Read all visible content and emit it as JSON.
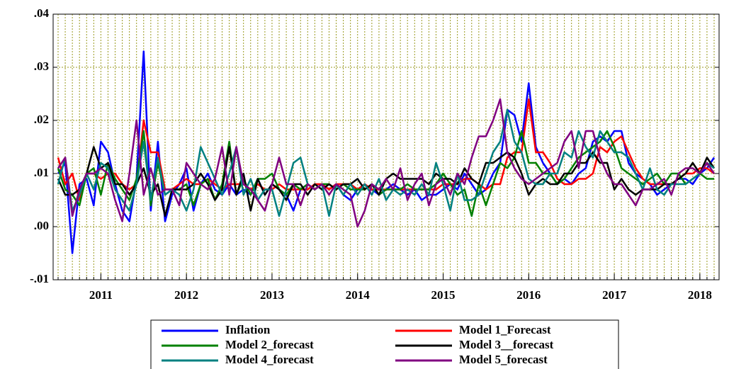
{
  "chart_data": {
    "type": "line",
    "categories": [
      null,
      null,
      null,
      null,
      null,
      null,
      "2011",
      null,
      null,
      null,
      null,
      null,
      null,
      null,
      null,
      null,
      null,
      null,
      "2012",
      null,
      null,
      null,
      null,
      null,
      null,
      null,
      null,
      null,
      null,
      null,
      "2013",
      null,
      null,
      null,
      null,
      null,
      null,
      null,
      null,
      null,
      null,
      null,
      "2014",
      null,
      null,
      null,
      null,
      null,
      null,
      null,
      null,
      null,
      null,
      null,
      "2015",
      null,
      null,
      null,
      null,
      null,
      null,
      null,
      null,
      null,
      null,
      null,
      "2016",
      null,
      null,
      null,
      null,
      null,
      null,
      null,
      null,
      null,
      null,
      null,
      "2017",
      null,
      null,
      null,
      null,
      null,
      null,
      null,
      null,
      null,
      null,
      null,
      "2018",
      null,
      null
    ],
    "ylim": [
      -0.01,
      0.04
    ],
    "yticks": [
      {
        "value": -0.01,
        "label": "-.01"
      },
      {
        "value": 0,
        "label": ".00"
      },
      {
        "value": 0.01,
        "label": ".01"
      },
      {
        "value": 0.02,
        "label": ".02"
      },
      {
        "value": 0.03,
        "label": ".03"
      },
      {
        "value": 0.04,
        "label": ".04"
      }
    ],
    "grid": true,
    "legend": "bottom",
    "series": [
      {
        "name": "Inflation",
        "color": "#0000ff",
        "values": [
          0.01,
          0.012,
          -0.005,
          0.008,
          0.009,
          0.004,
          0.016,
          0.014,
          0.008,
          0.003,
          0.001,
          0.009,
          0.033,
          0.003,
          0.016,
          0.001,
          0.006,
          0.008,
          0.011,
          0.003,
          0.008,
          0.01,
          0.007,
          0.006,
          0.008,
          0.006,
          0.007,
          0.006,
          0.009,
          0.006,
          0.008,
          0.007,
          0.006,
          0.003,
          0.007,
          0.008,
          0.007,
          0.008,
          0.007,
          0.008,
          0.006,
          0.005,
          0.007,
          0.008,
          0.007,
          0.006,
          0.007,
          0.008,
          0.007,
          0.006,
          0.007,
          0.005,
          0.006,
          0.006,
          0.007,
          0.008,
          0.007,
          0.01,
          0.008,
          0.006,
          0.007,
          0.01,
          0.012,
          0.022,
          0.021,
          0.016,
          0.027,
          0.015,
          0.012,
          0.01,
          0.008,
          0.009,
          0.008,
          0.01,
          0.011,
          0.016,
          0.017,
          0.016,
          0.018,
          0.018,
          0.012,
          0.01,
          0.009,
          0.008,
          0.006,
          0.007,
          0.008,
          0.009,
          0.009,
          0.008,
          0.01,
          0.011,
          0.013
        ]
      },
      {
        "name": "Model 1_Forecast",
        "color": "#ff0000",
        "values": [
          0.013,
          0.008,
          0.01,
          0.005,
          0.01,
          0.01,
          0.009,
          0.01,
          0.01,
          0.008,
          0.007,
          0.008,
          0.02,
          0.014,
          0.014,
          0.007,
          0.007,
          0.008,
          0.009,
          0.008,
          0.008,
          0.009,
          0.008,
          0.007,
          0.008,
          0.008,
          0.008,
          0.007,
          0.008,
          0.007,
          0.007,
          0.008,
          0.007,
          0.007,
          0.007,
          0.007,
          0.008,
          0.008,
          0.007,
          0.008,
          0.008,
          0.008,
          0.007,
          0.008,
          0.007,
          0.007,
          0.007,
          0.007,
          0.007,
          0.007,
          0.007,
          0.007,
          0.007,
          0.007,
          0.008,
          0.008,
          0.008,
          0.009,
          0.009,
          0.008,
          0.007,
          0.008,
          0.008,
          0.013,
          0.014,
          0.014,
          0.024,
          0.014,
          0.014,
          0.012,
          0.009,
          0.008,
          0.008,
          0.009,
          0.009,
          0.01,
          0.015,
          0.014,
          0.016,
          0.017,
          0.014,
          0.011,
          0.009,
          0.008,
          0.008,
          0.008,
          0.008,
          0.009,
          0.01,
          0.01,
          0.011,
          0.011,
          0.01
        ]
      },
      {
        "name": "Model 2_forecast",
        "color": "#008000",
        "values": [
          0.011,
          0.007,
          0.006,
          0.004,
          0.01,
          0.011,
          0.006,
          0.012,
          0.009,
          0.007,
          0.005,
          0.009,
          0.018,
          0.004,
          0.012,
          0.006,
          0.007,
          0.007,
          0.008,
          0.004,
          0.008,
          0.009,
          0.005,
          0.008,
          0.016,
          0.006,
          0.009,
          0.006,
          0.009,
          0.009,
          0.01,
          0.007,
          0.006,
          0.008,
          0.007,
          0.008,
          0.007,
          0.008,
          0.008,
          0.007,
          0.008,
          0.007,
          0.007,
          0.007,
          0.008,
          0.006,
          0.007,
          0.007,
          0.007,
          0.008,
          0.007,
          0.007,
          0.007,
          0.008,
          0.01,
          0.008,
          0.006,
          0.007,
          0.002,
          0.008,
          0.004,
          0.008,
          0.012,
          0.011,
          0.013,
          0.018,
          0.012,
          0.012,
          0.01,
          0.01,
          0.008,
          0.009,
          0.011,
          0.013,
          0.014,
          0.015,
          0.016,
          0.018,
          0.015,
          0.011,
          0.01,
          0.009,
          0.008,
          0.009,
          0.01,
          0.008,
          0.01,
          0.01,
          0.008,
          0.009,
          0.01,
          0.009,
          0.009
        ]
      },
      {
        "name": "Model 3__forecast",
        "color": "#000000",
        "values": [
          0.009,
          0.006,
          0.006,
          0.007,
          0.01,
          0.015,
          0.011,
          0.012,
          0.008,
          0.008,
          0.006,
          0.008,
          0.011,
          0.006,
          0.008,
          0.002,
          0.007,
          0.007,
          0.007,
          0.008,
          0.01,
          0.008,
          0.005,
          0.007,
          0.015,
          0.006,
          0.01,
          0.003,
          0.009,
          0.006,
          0.008,
          0.007,
          0.005,
          0.008,
          0.008,
          0.006,
          0.008,
          0.007,
          0.008,
          0.007,
          0.008,
          0.008,
          0.009,
          0.007,
          0.008,
          0.006,
          0.009,
          0.01,
          0.009,
          0.009,
          0.009,
          0.009,
          0.008,
          0.01,
          0.009,
          0.009,
          0.008,
          0.011,
          0.009,
          0.008,
          0.012,
          0.012,
          0.013,
          0.014,
          0.013,
          0.01,
          0.006,
          0.008,
          0.009,
          0.008,
          0.008,
          0.01,
          0.01,
          0.012,
          0.012,
          0.014,
          0.012,
          0.012,
          0.007,
          0.009,
          0.007,
          0.006,
          0.007,
          0.007,
          0.007,
          0.008,
          0.008,
          0.009,
          0.01,
          0.012,
          0.01,
          0.013,
          0.011
        ]
      },
      {
        "name": "Model 4_forecast",
        "color": "#008080",
        "values": [
          0.008,
          0.013,
          0.003,
          0.006,
          0.01,
          0.007,
          0.012,
          0.011,
          0.007,
          0.005,
          0.003,
          0.008,
          0.016,
          0.005,
          0.013,
          0.006,
          0.007,
          0.006,
          0.003,
          0.007,
          0.015,
          0.012,
          0.009,
          0.006,
          0.01,
          0.015,
          0.006,
          0.009,
          0.005,
          0.007,
          0.007,
          0.002,
          0.007,
          0.012,
          0.013,
          0.008,
          0.007,
          0.008,
          0.002,
          0.008,
          0.006,
          0.008,
          0.006,
          0.008,
          0.006,
          0.009,
          0.005,
          0.007,
          0.006,
          0.007,
          0.006,
          0.008,
          0.006,
          0.012,
          0.008,
          0.003,
          0.01,
          0.005,
          0.005,
          0.006,
          0.01,
          0.014,
          0.016,
          0.022,
          0.016,
          0.014,
          0.009,
          0.008,
          0.008,
          0.01,
          0.01,
          0.014,
          0.013,
          0.018,
          0.015,
          0.013,
          0.018,
          0.016,
          0.014,
          0.014,
          0.013,
          0.01,
          0.007,
          0.011,
          0.007,
          0.006,
          0.008,
          0.008,
          0.008,
          0.009,
          0.01,
          0.012,
          0.011
        ]
      },
      {
        "name": "Model 5_forecast",
        "color": "#800080",
        "values": [
          0.011,
          0.013,
          0.002,
          0.007,
          0.01,
          0.01,
          0.011,
          0.01,
          0.005,
          0.001,
          0.01,
          0.02,
          0.006,
          0.011,
          0.006,
          0.007,
          0.007,
          0.004,
          0.012,
          0.01,
          0.008,
          0.007,
          0.009,
          0.015,
          0.006,
          0.015,
          0.008,
          0.007,
          0.005,
          0.003,
          0.008,
          0.013,
          0.008,
          0.008,
          0.004,
          0.008,
          0.007,
          0.008,
          0.006,
          0.008,
          0.007,
          0.006,
          0.0,
          0.003,
          0.008,
          0.007,
          0.009,
          0.007,
          0.011,
          0.005,
          0.008,
          0.01,
          0.004,
          0.008,
          0.009,
          0.006,
          0.01,
          0.008,
          0.013,
          0.017,
          0.017,
          0.02,
          0.024,
          0.014,
          0.011,
          0.009,
          0.008,
          0.009,
          0.01,
          0.011,
          0.012,
          0.016,
          0.018,
          0.011,
          0.018,
          0.018,
          0.013,
          0.01,
          0.008,
          0.008,
          0.006,
          0.004,
          0.007,
          0.007,
          0.008,
          0.009,
          0.006,
          0.01,
          0.011,
          0.011,
          0.01,
          0.012,
          0.01
        ]
      }
    ]
  }
}
